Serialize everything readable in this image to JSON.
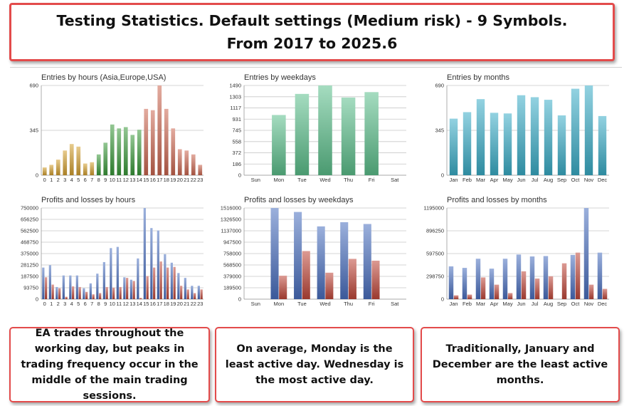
{
  "title": {
    "line1": "Testing Statistics. Default settings (Medium risk) - 9 Symbols.",
    "line2": "From 2017 to 2025.6"
  },
  "notes": {
    "hours": "EA trades throughout the working day, but peaks in trading frequency occur in the middle of the main trading sessions.",
    "weekdays": "On average, Monday is the least active day. Wednesday is the most active day.",
    "months": "Traditionally, January and December are the least active months."
  },
  "colors": {
    "asia": "#d4a030",
    "europe": "#3a9a3a",
    "usa": "#cc6650",
    "weekday": "#5cc08c",
    "month": "#3aaec8",
    "profit": "#4a6fc0",
    "loss": "#c0473a",
    "grid": "#c8c8c8"
  },
  "chart_data": [
    {
      "id": "entries-hours",
      "type": "bar",
      "title": "Entries by hours (Asia,Europe,USA)",
      "categories": [
        "0",
        "1",
        "2",
        "3",
        "4",
        "5",
        "6",
        "7",
        "8",
        "9",
        "10",
        "11",
        "12",
        "13",
        "14",
        "15",
        "16",
        "17",
        "18",
        "19",
        "20",
        "21",
        "22",
        "23"
      ],
      "values": [
        60,
        80,
        120,
        190,
        240,
        220,
        90,
        100,
        160,
        250,
        390,
        360,
        370,
        310,
        350,
        510,
        500,
        690,
        510,
        360,
        200,
        190,
        160,
        80
      ],
      "groups": [
        "asia",
        "asia",
        "asia",
        "asia",
        "asia",
        "asia",
        "asia",
        "asia",
        "europe",
        "europe",
        "europe",
        "europe",
        "europe",
        "europe",
        "europe",
        "usa",
        "usa",
        "usa",
        "usa",
        "usa",
        "usa",
        "usa",
        "usa",
        "usa"
      ],
      "yticks": [
        "0",
        "345",
        "690"
      ],
      "ytick_values": [
        0,
        345,
        690
      ],
      "ylim": [
        0,
        690
      ]
    },
    {
      "id": "entries-weekdays",
      "type": "bar",
      "title": "Entries by weekdays",
      "categories": [
        "Sun",
        "Mon",
        "Tue",
        "Wed",
        "Thu",
        "Fri",
        "Sat"
      ],
      "values": [
        0,
        1000,
        1350,
        1490,
        1290,
        1380,
        0
      ],
      "yticks": [
        "0",
        "186",
        "372",
        "558",
        "745",
        "931",
        "1117",
        "1303",
        "1490"
      ],
      "ytick_values": [
        0,
        186,
        372,
        558,
        745,
        931,
        1117,
        1303,
        1490
      ],
      "ylim": [
        0,
        1490
      ]
    },
    {
      "id": "entries-months",
      "type": "bar",
      "title": "Entries by months",
      "categories": [
        "Jan",
        "Feb",
        "Mar",
        "Apr",
        "May",
        "Jun",
        "Jul",
        "Aug",
        "Sep",
        "Oct",
        "Nov",
        "Dec"
      ],
      "values": [
        435,
        485,
        585,
        480,
        475,
        615,
        600,
        580,
        460,
        665,
        690,
        455
      ],
      "yticks": [
        "0",
        "345",
        "690"
      ],
      "ytick_values": [
        0,
        345,
        690
      ],
      "ylim": [
        0,
        690
      ]
    },
    {
      "id": "pl-hours",
      "type": "bar",
      "title": "Profits and losses by hours",
      "categories": [
        "0",
        "1",
        "2",
        "3",
        "4",
        "5",
        "6",
        "7",
        "8",
        "9",
        "10",
        "11",
        "12",
        "13",
        "14",
        "15",
        "16",
        "17",
        "18",
        "19",
        "20",
        "21",
        "22",
        "23"
      ],
      "series": [
        {
          "name": "profit",
          "values": [
            260000,
            280000,
            100000,
            195000,
            195000,
            195000,
            90000,
            130000,
            210000,
            305000,
            420000,
            430000,
            180000,
            160000,
            335000,
            750000,
            585000,
            565000,
            370000,
            300000,
            215000,
            175000,
            110000,
            110000
          ]
        },
        {
          "name": "loss",
          "values": [
            180000,
            120000,
            90000,
            20000,
            105000,
            100000,
            60000,
            40000,
            50000,
            100000,
            95000,
            100000,
            175000,
            150000,
            10000,
            190000,
            260000,
            310000,
            260000,
            265000,
            110000,
            80000,
            50000,
            80000
          ]
        }
      ],
      "yticks": [
        "0",
        "93750",
        "187500",
        "281250",
        "375000",
        "468750",
        "562500",
        "656250",
        "750000"
      ],
      "ytick_values": [
        0,
        93750,
        187500,
        281250,
        375000,
        468750,
        562500,
        656250,
        750000
      ],
      "ylim": [
        0,
        750000
      ]
    },
    {
      "id": "pl-weekdays",
      "type": "bar",
      "title": "Profits and losses by weekdays",
      "categories": [
        "Sun",
        "Mon",
        "Tue",
        "Wed",
        "Thu",
        "Fri",
        "Sat"
      ],
      "series": [
        {
          "name": "profit",
          "values": [
            0,
            1516000,
            1450000,
            1210000,
            1280000,
            1250000,
            0
          ]
        },
        {
          "name": "loss",
          "values": [
            0,
            390000,
            800000,
            440000,
            670000,
            640000,
            0
          ]
        }
      ],
      "yticks": [
        "0",
        "189500",
        "379000",
        "568500",
        "758000",
        "947500",
        "1137000",
        "1326500",
        "1516000"
      ],
      "ytick_values": [
        0,
        189500,
        379000,
        568500,
        758000,
        947500,
        1137000,
        1326500,
        1516000
      ],
      "ylim": [
        0,
        1516000
      ]
    },
    {
      "id": "pl-months",
      "type": "bar",
      "title": "Profits and losses by months",
      "categories": [
        "Jan",
        "Feb",
        "Mar",
        "Apr",
        "May",
        "Jun",
        "Jul",
        "Aug",
        "Sep",
        "Oct",
        "Nov",
        "Dec"
      ],
      "series": [
        {
          "name": "profit",
          "values": [
            430000,
            410000,
            530000,
            400000,
            530000,
            585000,
            560000,
            565000,
            0,
            580000,
            1195000,
            610000
          ]
        },
        {
          "name": "loss",
          "values": [
            50000,
            60000,
            285000,
            190000,
            80000,
            365000,
            270000,
            300000,
            470000,
            610000,
            190000,
            135000
          ]
        }
      ],
      "yticks": [
        "0",
        "298750",
        "597500",
        "896250",
        "1195000"
      ],
      "ytick_values": [
        0,
        298750,
        597500,
        896250,
        1195000
      ],
      "ylim": [
        0,
        1195000
      ]
    }
  ]
}
